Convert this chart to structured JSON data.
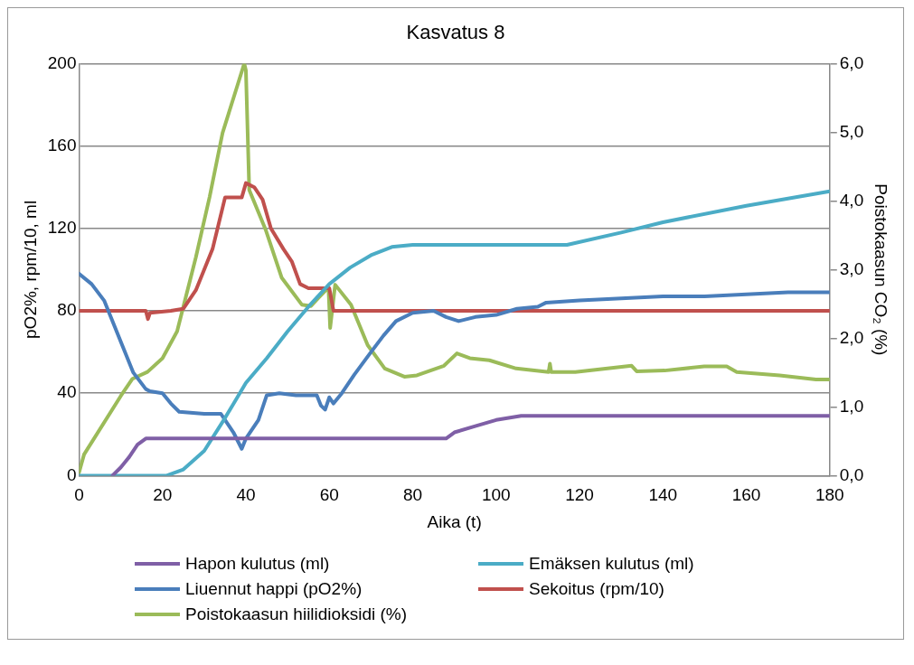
{
  "chart_data": {
    "type": "line",
    "title": "Kasvatus 8",
    "xlabel": "Aika (t)",
    "ylabel": "pO2%, rpm/10, ml",
    "y2label": "Poistokaasun CO₂ (%)",
    "xlim": [
      0,
      180
    ],
    "xticks": [
      0,
      20,
      40,
      60,
      80,
      100,
      120,
      140,
      160,
      180
    ],
    "ylim": [
      0,
      200
    ],
    "yticks": [
      0,
      40,
      80,
      120,
      160,
      200
    ],
    "y2lim": [
      0,
      6
    ],
    "y2ticks": [
      {
        "value": 0,
        "label": "0,0"
      },
      {
        "value": 1,
        "label": "1,0"
      },
      {
        "value": 2,
        "label": "2,0"
      },
      {
        "value": 3,
        "label": "3,0"
      },
      {
        "value": 4,
        "label": "4,0"
      },
      {
        "value": 5,
        "label": "5,0"
      },
      {
        "value": 6,
        "label": "6,0"
      }
    ],
    "grid": "y",
    "legend": "bottom",
    "marker": "none",
    "line_style": "solid",
    "series": [
      {
        "name": "Hapon kulutus (ml)",
        "color": "#7f5fa6",
        "x": [
          8,
          10,
          12,
          14,
          16,
          20,
          40,
          60,
          80,
          88,
          90,
          95,
          100,
          106,
          120,
          140,
          160,
          180
        ],
        "values": [
          0,
          4,
          9,
          15,
          18,
          18,
          18,
          18,
          18,
          18,
          21,
          24,
          27,
          29,
          29,
          29,
          29,
          29
        ]
      },
      {
        "name": "Emäksen kulutus (ml)",
        "color": "#4bacc6",
        "x": [
          0,
          10,
          21,
          25,
          30,
          35,
          40,
          45,
          50,
          55,
          60,
          65,
          70,
          75,
          80,
          100,
          117,
          130,
          140,
          160,
          180
        ],
        "values": [
          0,
          0,
          0,
          3,
          12,
          28,
          45,
          57,
          70,
          82,
          93,
          101,
          107,
          111,
          112,
          112,
          112,
          118,
          123,
          131,
          138
        ]
      },
      {
        "name": "Liuennut happi (pO2%)",
        "color": "#4a7ebb",
        "x": [
          0,
          3,
          6,
          10,
          13,
          16,
          17,
          20,
          22,
          24,
          30,
          34,
          37,
          39,
          40,
          43,
          45,
          48,
          52,
          57,
          58,
          59,
          60,
          61,
          63,
          66,
          70,
          73,
          76,
          80,
          85,
          88,
          91,
          95,
          100,
          105,
          110,
          112,
          120,
          130,
          140,
          150,
          160,
          170,
          180
        ],
        "values": [
          98,
          93,
          85,
          65,
          50,
          42,
          41,
          40,
          35,
          31,
          30,
          30,
          21,
          13,
          18,
          27,
          39,
          40,
          39,
          39,
          34,
          32,
          38,
          35,
          40,
          49,
          60,
          68,
          75,
          79,
          80,
          77,
          75,
          77,
          78,
          81,
          82,
          84,
          85,
          86,
          87,
          87,
          88,
          89,
          89
        ]
      },
      {
        "name": "Sekoitus (rpm/10)",
        "color": "#c0504d",
        "x": [
          0,
          16,
          16.5,
          17,
          22,
          25,
          28,
          32,
          35,
          39,
          40,
          42,
          44,
          46,
          49,
          51,
          53,
          55,
          60,
          61,
          80,
          120,
          180
        ],
        "values": [
          80,
          80,
          76,
          79,
          80,
          81,
          90,
          110,
          135,
          135,
          142,
          140,
          134,
          120,
          110,
          104,
          93,
          91,
          91,
          80,
          80,
          80,
          80
        ]
      },
      {
        "name": "Poistokaasun hiilidioksidi (%)",
        "color": "#9bbb59",
        "axis": "y2",
        "x": [
          0,
          1.2,
          10,
          12.8,
          16.4,
          20,
          23.5,
          28,
          31.3,
          34.4,
          37.7,
          39.6,
          40,
          40.8,
          44.8,
          48.6,
          53.4,
          55.6,
          57.4,
          59.8,
          60.2,
          61.4,
          65.2,
          69.2,
          73.3,
          78,
          81,
          87.5,
          90.6,
          93.7,
          98.4,
          104.8,
          112.6,
          112.9,
          113.2,
          119,
          132.5,
          133.7,
          140.4,
          149.9,
          155.3,
          157.7,
          168,
          176.7,
          180
        ],
        "values": [
          0.05,
          0.31,
          1.16,
          1.41,
          1.51,
          1.71,
          2.1,
          3.18,
          4.06,
          4.99,
          5.63,
          6.0,
          5.9,
          4.16,
          3.57,
          2.88,
          2.49,
          2.47,
          2.59,
          2.74,
          2.15,
          2.78,
          2.49,
          1.9,
          1.56,
          1.44,
          1.46,
          1.6,
          1.78,
          1.71,
          1.68,
          1.56,
          1.51,
          1.63,
          1.51,
          1.51,
          1.6,
          1.52,
          1.53,
          1.59,
          1.59,
          1.51,
          1.46,
          1.4,
          1.4
        ]
      }
    ]
  }
}
